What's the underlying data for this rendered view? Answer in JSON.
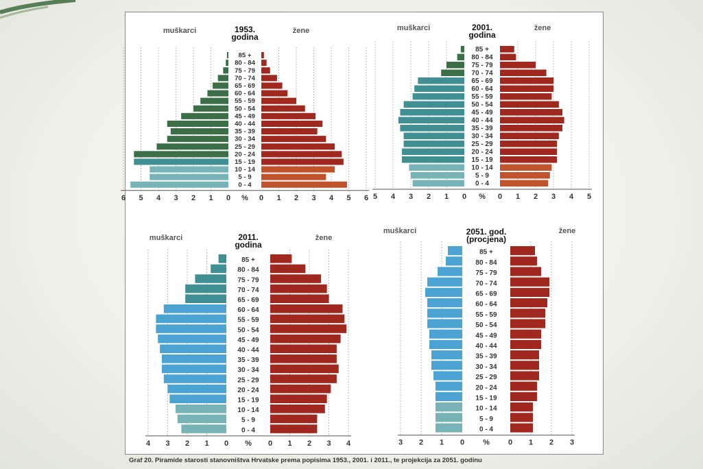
{
  "caption": {
    "label": "Graf 20.",
    "text": "Piramide starosti stanovništva Hrvatske prema popisima 1953., 2001. i 2011., te projekcija za 2051. godinu"
  },
  "colors": {
    "male_dark": "#3c6e47",
    "male_teal": "#3f8f93",
    "male_light": "#78b3b7",
    "male_sky": "#4aa3d3",
    "male_sky_light": "#7cbfe0",
    "female_dark": "#a1281f",
    "female_orange": "#c0532b",
    "grid": "#bbbbbb"
  },
  "age_groups": [
    "0 - 4",
    "5 - 9",
    "10 - 14",
    "15 - 19",
    "20 - 24",
    "25 - 29",
    "30 - 34",
    "35 - 39",
    "40 - 44",
    "45 - 49",
    "50 - 54",
    "55 - 59",
    "60 - 64",
    "65 - 69",
    "70 - 74",
    "75 - 79",
    "80 - 84",
    "85 +"
  ],
  "chart_data": [
    {
      "type": "bar",
      "title_line1": "1953.",
      "title_line2": "godina",
      "left_label": "muškarci",
      "right_label": "žene",
      "unit_label": "%",
      "xlim": [
        0,
        6
      ],
      "ticks": [
        0,
        1,
        2,
        3,
        4,
        5,
        6
      ],
      "series": [
        {
          "name": "muškarci",
          "values": [
            5.6,
            4.5,
            4.5,
            5.4,
            5.4,
            4.1,
            3.5,
            3.3,
            3.5,
            2.7,
            2.0,
            1.6,
            1.2,
            0.9,
            0.6,
            0.3,
            0.15,
            0.08
          ]
        },
        {
          "name": "žene",
          "values": [
            4.9,
            3.7,
            4.2,
            4.7,
            4.6,
            4.2,
            3.7,
            3.2,
            3.5,
            3.1,
            2.5,
            2.0,
            1.5,
            1.2,
            0.9,
            0.5,
            0.3,
            0.15
          ]
        }
      ]
    },
    {
      "type": "bar",
      "title_line1": "2001.",
      "title_line2": "godina",
      "left_label": "muškarci",
      "right_label": "žene",
      "unit_label": "%",
      "xlim": [
        0,
        5
      ],
      "ticks": [
        0,
        1,
        2,
        3,
        4,
        5
      ],
      "series": [
        {
          "name": "muškarci",
          "values": [
            2.9,
            3.0,
            3.1,
            3.5,
            3.5,
            3.4,
            3.4,
            3.6,
            3.7,
            3.6,
            3.4,
            2.9,
            2.8,
            2.6,
            1.3,
            1.0,
            0.4,
            0.2
          ]
        },
        {
          "name": "žene",
          "values": [
            2.7,
            2.8,
            2.9,
            3.2,
            3.2,
            3.2,
            3.3,
            3.5,
            3.6,
            3.5,
            3.3,
            2.9,
            3.0,
            3.0,
            2.6,
            2.0,
            0.9,
            0.8
          ]
        }
      ]
    },
    {
      "type": "bar",
      "title_line1": "2011.",
      "title_line2": "godina",
      "left_label": "muškarci",
      "right_label": "žene",
      "unit_label": "%",
      "xlim": [
        0,
        4
      ],
      "ticks": [
        0,
        1,
        2,
        3,
        4
      ],
      "series": [
        {
          "name": "muškarci",
          "values": [
            2.3,
            2.5,
            2.6,
            2.9,
            3.0,
            3.2,
            3.3,
            3.3,
            3.4,
            3.5,
            3.6,
            3.6,
            3.2,
            2.1,
            2.1,
            1.6,
            0.8,
            0.4
          ]
        },
        {
          "name": "žene",
          "values": [
            2.4,
            2.4,
            2.8,
            2.9,
            3.1,
            3.4,
            3.5,
            3.4,
            3.4,
            3.6,
            3.9,
            3.8,
            3.7,
            3.0,
            2.9,
            2.6,
            1.8,
            1.1
          ]
        }
      ]
    },
    {
      "type": "bar",
      "title_line1": "2051. god.",
      "title_line2": "(procjena)",
      "left_label": "muškarci",
      "right_label": "žene",
      "unit_label": "%",
      "xlim": [
        0,
        3
      ],
      "ticks": [
        0,
        1,
        2,
        3
      ],
      "series": [
        {
          "name": "muškarci",
          "values": [
            1.3,
            1.3,
            1.3,
            1.3,
            1.3,
            1.4,
            1.5,
            1.5,
            1.6,
            1.6,
            1.7,
            1.7,
            1.7,
            1.8,
            1.7,
            1.2,
            0.8,
            0.7
          ]
        },
        {
          "name": "žene",
          "values": [
            1.1,
            1.1,
            1.1,
            1.3,
            1.3,
            1.4,
            1.4,
            1.4,
            1.5,
            1.5,
            1.7,
            1.7,
            1.8,
            1.9,
            1.9,
            1.5,
            1.3,
            1.2
          ]
        }
      ]
    }
  ]
}
